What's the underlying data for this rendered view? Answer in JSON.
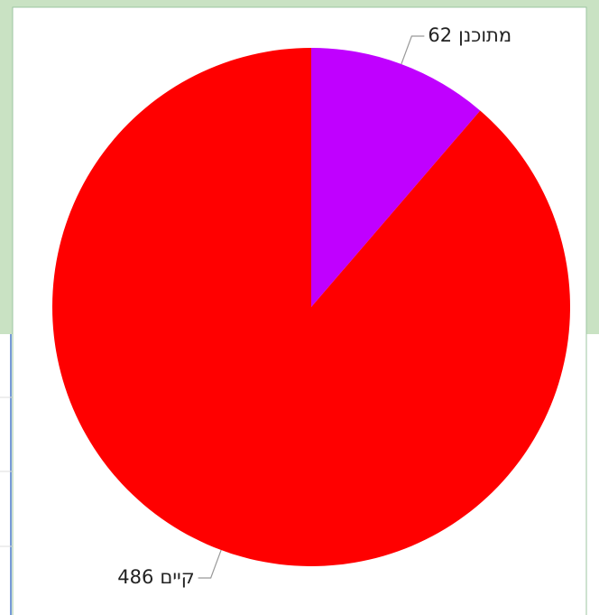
{
  "chart_data": {
    "type": "pie",
    "categories": [
      "מתוכנן",
      "קיים"
    ],
    "values": [
      62,
      486
    ],
    "colors": [
      "#c000ff",
      "#ff0000"
    ],
    "start_angle": 0,
    "direction": "clockwise"
  }
}
